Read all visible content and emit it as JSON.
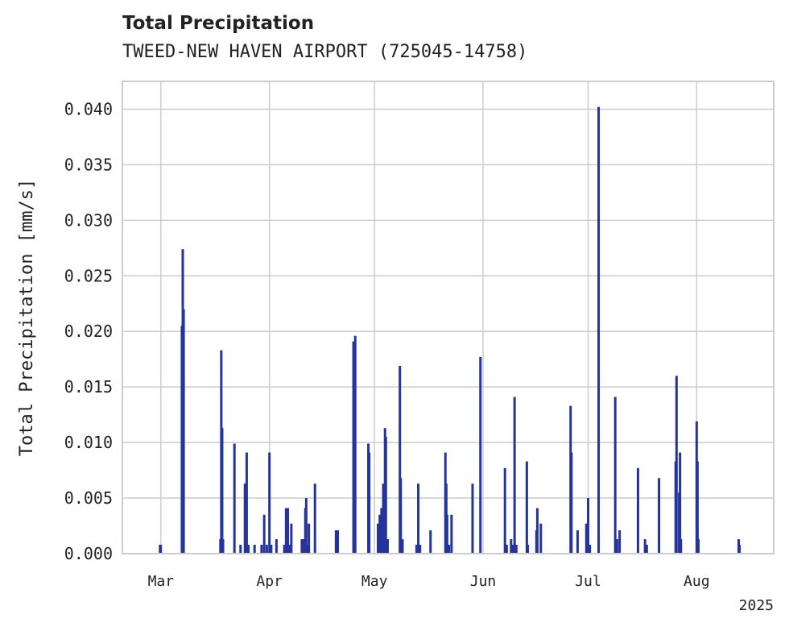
{
  "chart_data": {
    "type": "bar",
    "title": "Total Precipitation",
    "subtitle": "TWEED-NEW HAVEN AIRPORT (725045-14758)",
    "ylabel": "Total Precipitation [mm/s]",
    "xlabel": "",
    "ylim": [
      0,
      0.0425
    ],
    "xlim": [
      "2025-02-18",
      "2025-08-23"
    ],
    "grid": true,
    "color": "#24349a",
    "y_ticks": [
      "0.000",
      "0.005",
      "0.010",
      "0.015",
      "0.020",
      "0.025",
      "0.030",
      "0.035",
      "0.040"
    ],
    "x_ticks": [
      {
        "date": "2025-03-01",
        "label": "Mar"
      },
      {
        "date": "2025-04-01",
        "label": "Apr"
      },
      {
        "date": "2025-05-01",
        "label": "May"
      },
      {
        "date": "2025-06-01",
        "label": "Jun"
      },
      {
        "date": "2025-07-01",
        "label": "Jul"
      },
      {
        "date": "2025-08-01",
        "label": "Aug"
      }
    ],
    "x_offset_label": "2025",
    "points": [
      [
        "2025-02-28 18:00",
        0.0008
      ],
      [
        "2025-02-28 23:00",
        0.0008
      ],
      [
        "2025-03-07 00:00",
        0.0205
      ],
      [
        "2025-03-07 06:00",
        0.0274
      ],
      [
        "2025-03-07 12:00",
        0.022
      ],
      [
        "2025-03-18 00:00",
        0.0013
      ],
      [
        "2025-03-18 06:00",
        0.0183
      ],
      [
        "2025-03-18 12:00",
        0.0113
      ],
      [
        "2025-03-18 18:00",
        0.0013
      ],
      [
        "2025-03-22 00:00",
        0.0099
      ],
      [
        "2025-03-23 18:00",
        0.0008
      ],
      [
        "2025-03-25 00:00",
        0.0063
      ],
      [
        "2025-03-25 12:00",
        0.0091
      ],
      [
        "2025-03-26 00:00",
        0.0008
      ],
      [
        "2025-03-27 18:00",
        0.0008
      ],
      [
        "2025-03-29 18:00",
        0.0008
      ],
      [
        "2025-03-30 12:00",
        0.0035
      ],
      [
        "2025-03-31 06:00",
        0.0008
      ],
      [
        "2025-04-01 00:00",
        0.0091
      ],
      [
        "2025-04-01 12:00",
        0.0008
      ],
      [
        "2025-04-03 00:00",
        0.0013
      ],
      [
        "2025-04-05 06:00",
        0.0008
      ],
      [
        "2025-04-05 18:00",
        0.0041
      ],
      [
        "2025-04-06 06:00",
        0.0041
      ],
      [
        "2025-04-06 18:00",
        0.0008
      ],
      [
        "2025-04-07 06:00",
        0.0027
      ],
      [
        "2025-04-10 06:00",
        0.0013
      ],
      [
        "2025-04-10 18:00",
        0.0013
      ],
      [
        "2025-04-11 06:00",
        0.0041
      ],
      [
        "2025-04-11 12:00",
        0.005
      ],
      [
        "2025-04-11 18:00",
        0.0008
      ],
      [
        "2025-04-12 06:00",
        0.0027
      ],
      [
        "2025-04-14 00:00",
        0.0063
      ],
      [
        "2025-04-20 00:00",
        0.0021
      ],
      [
        "2025-04-20 12:00",
        0.0021
      ],
      [
        "2025-04-25 00:00",
        0.0191
      ],
      [
        "2025-04-25 12:00",
        0.0196
      ],
      [
        "2025-04-29 06:00",
        0.0099
      ],
      [
        "2025-04-29 12:00",
        0.0091
      ],
      [
        "2025-05-02 00:00",
        0.0027
      ],
      [
        "2025-05-02 12:00",
        0.0035
      ],
      [
        "2025-05-03 00:00",
        0.0041
      ],
      [
        "2025-05-03 12:00",
        0.0063
      ],
      [
        "2025-05-04 00:00",
        0.0113
      ],
      [
        "2025-05-04 06:00",
        0.0105
      ],
      [
        "2025-05-04 18:00",
        0.0013
      ],
      [
        "2025-05-08 06:00",
        0.0169
      ],
      [
        "2025-05-08 12:00",
        0.0068
      ],
      [
        "2025-05-09 00:00",
        0.0013
      ],
      [
        "2025-05-13 00:00",
        0.0008
      ],
      [
        "2025-05-13 12:00",
        0.0063
      ],
      [
        "2025-05-14 00:00",
        0.0008
      ],
      [
        "2025-05-17 00:00",
        0.0021
      ],
      [
        "2025-05-21 06:00",
        0.0091
      ],
      [
        "2025-05-21 12:00",
        0.0063
      ],
      [
        "2025-05-21 18:00",
        0.0035
      ],
      [
        "2025-05-22 06:00",
        0.0008
      ],
      [
        "2025-05-23 00:00",
        0.0035
      ],
      [
        "2025-05-29 00:00",
        0.0063
      ],
      [
        "2025-05-31 06:00",
        0.0177
      ],
      [
        "2025-06-07 06:00",
        0.0077
      ],
      [
        "2025-06-07 18:00",
        0.0008
      ],
      [
        "2025-06-09 00:00",
        0.0013
      ],
      [
        "2025-06-09 12:00",
        0.0008
      ],
      [
        "2025-06-10 00:00",
        0.0141
      ],
      [
        "2025-06-10 12:00",
        0.0008
      ],
      [
        "2025-06-13 12:00",
        0.0083
      ],
      [
        "2025-06-13 18:00",
        0.0008
      ],
      [
        "2025-06-16 06:00",
        0.0021
      ],
      [
        "2025-06-16 12:00",
        0.0041
      ],
      [
        "2025-06-17 12:00",
        0.0027
      ],
      [
        "2025-06-26 00:00",
        0.0133
      ],
      [
        "2025-06-26 06:00",
        0.0091
      ],
      [
        "2025-06-28 00:00",
        0.0021
      ],
      [
        "2025-06-30 12:00",
        0.0027
      ],
      [
        "2025-07-01 00:00",
        0.005
      ],
      [
        "2025-07-01 12:00",
        0.0008
      ],
      [
        "2025-07-04 00:00",
        0.0402
      ],
      [
        "2025-07-08 18:00",
        0.0141
      ],
      [
        "2025-07-09 06:00",
        0.0013
      ],
      [
        "2025-07-10 00:00",
        0.0021
      ],
      [
        "2025-07-15 06:00",
        0.0077
      ],
      [
        "2025-07-17 06:00",
        0.0013
      ],
      [
        "2025-07-17 18:00",
        0.0008
      ],
      [
        "2025-07-21 06:00",
        0.0068
      ],
      [
        "2025-07-26 00:00",
        0.0083
      ],
      [
        "2025-07-26 06:00",
        0.016
      ],
      [
        "2025-07-27 00:00",
        0.0055
      ],
      [
        "2025-07-27 06:00",
        0.0091
      ],
      [
        "2025-07-27 12:00",
        0.0013
      ],
      [
        "2025-08-01 00:00",
        0.0119
      ],
      [
        "2025-08-01 06:00",
        0.0083
      ],
      [
        "2025-08-01 12:00",
        0.0013
      ],
      [
        "2025-08-13 00:00",
        0.0013
      ],
      [
        "2025-08-13 06:00",
        0.0008
      ]
    ]
  }
}
